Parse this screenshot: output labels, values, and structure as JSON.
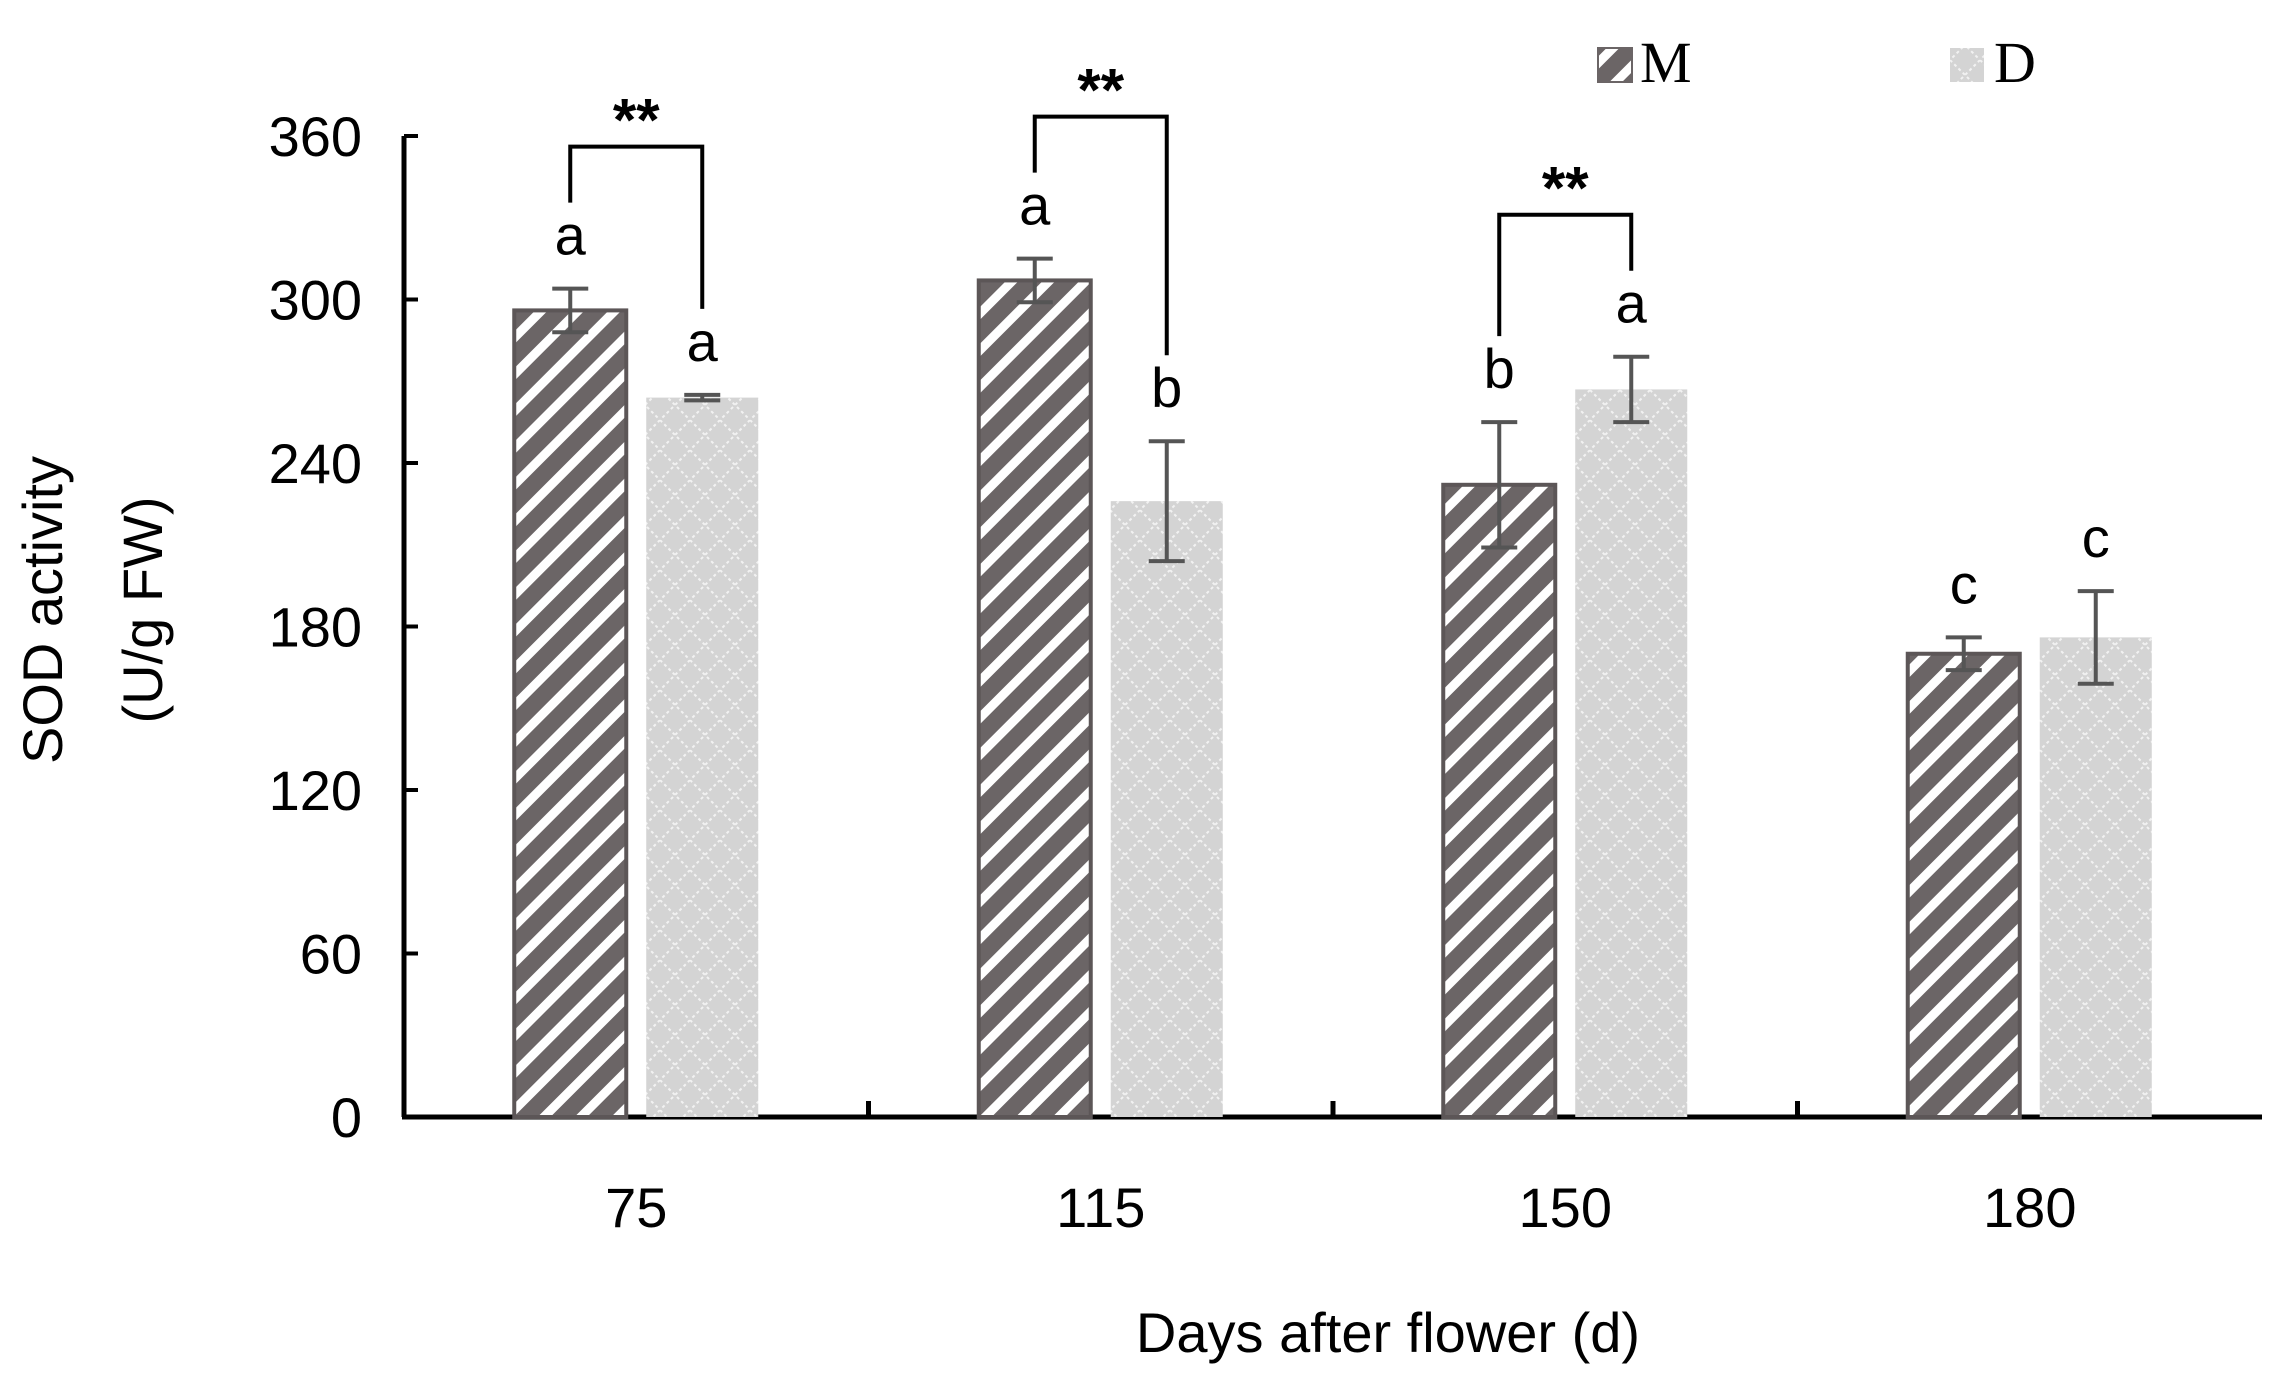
{
  "chart_data": {
    "type": "bar",
    "title": "",
    "xlabel": "Days after flower (d)",
    "ylabel_line1": "SOD activity",
    "ylabel_line2": "(U/g FW)",
    "categories": [
      "75",
      "115",
      "150",
      "180"
    ],
    "ylim": [
      0,
      360
    ],
    "yticks": [
      0,
      60,
      120,
      180,
      240,
      300,
      360
    ],
    "ytick_labels": [
      "0",
      "60",
      "120",
      "180",
      "240",
      "300",
      "360"
    ],
    "legend_position": "top-right",
    "series": [
      {
        "name": "M",
        "color": "#6b6566",
        "stripe_color": "#ffffff",
        "values": [
          296,
          307,
          232,
          170
        ],
        "errors": [
          8,
          8,
          23,
          6
        ],
        "letters": [
          "a",
          "a",
          "b",
          "c"
        ]
      },
      {
        "name": "D",
        "color": "#d4d4d4",
        "stripe_color": "#f0f0f0",
        "values": [
          264,
          226,
          267,
          176
        ],
        "errors": [
          1,
          22,
          12,
          17
        ],
        "letters": [
          "a",
          "b",
          "a",
          "c"
        ]
      }
    ],
    "significance": [
      {
        "category_index": 0,
        "label": "**"
      },
      {
        "category_index": 1,
        "label": "**"
      },
      {
        "category_index": 2,
        "label": "**"
      }
    ]
  }
}
